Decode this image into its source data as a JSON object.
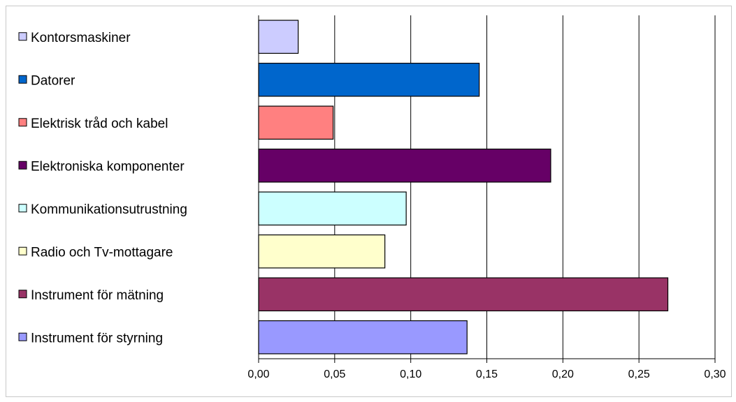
{
  "chart_data": {
    "type": "bar",
    "orientation": "horizontal",
    "title": "",
    "xlabel": "",
    "ylabel": "",
    "categories": [
      "Kontorsmaskiner",
      "Datorer",
      "Elektrisk tråd och kabel",
      "Elektroniska komponenter",
      "Kommunikationsutrustning",
      "Radio och Tv-mottagare",
      "Instrument för mätning",
      "Instrument för styrning"
    ],
    "values": [
      0.026,
      0.145,
      0.049,
      0.192,
      0.097,
      0.083,
      0.269,
      0.137
    ],
    "colors": [
      "#ccccff",
      "#0066cc",
      "#ff8080",
      "#660066",
      "#ccffff",
      "#ffffcc",
      "#993366",
      "#9999ff"
    ],
    "xlim": [
      0,
      0.3
    ],
    "x_ticks": [
      "0,00",
      "0,05",
      "0,10",
      "0,15",
      "0,20",
      "0,25",
      "0,30"
    ],
    "x_tick_values": [
      0,
      0.05,
      0.1,
      0.15,
      0.2,
      0.25,
      0.3
    ],
    "grid": "vertical",
    "legend": "left"
  }
}
